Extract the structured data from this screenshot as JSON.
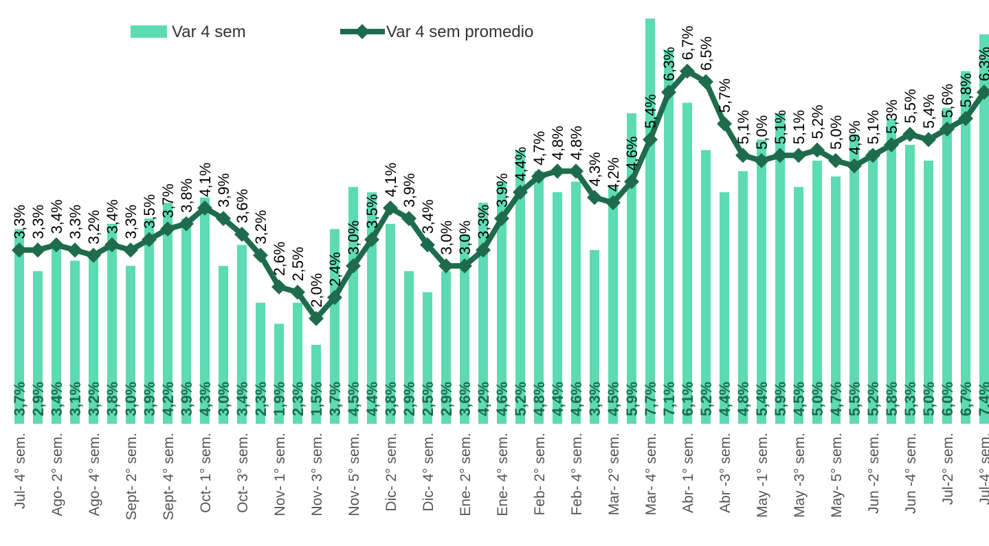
{
  "chart_data": {
    "type": "bar-line",
    "categories": [
      "Jul- 4° sem.",
      null,
      "Ago- 2° sem.",
      null,
      "Ago- 4° sem.",
      null,
      "Sept- 2° sem.",
      null,
      "Sept- 4° sem.",
      null,
      "Oct- 1° sem.",
      null,
      "Oct- 3° sem.",
      null,
      "Nov- 1° sem.",
      null,
      "Nov- 3° sem.",
      null,
      "Nov- 5° sem.",
      null,
      "Dic- 2° sem.",
      null,
      "Dic- 4° sem.",
      null,
      "Ene- 2° sem.",
      null,
      "Ene- 4° sem.",
      null,
      "Feb- 2° sem.",
      null,
      "Feb- 4° sem.",
      null,
      "Mar- 2° sem.",
      null,
      "Mar- 4° sem.",
      null,
      "Abr- 1° sem.",
      null,
      "Abr -3° sem.",
      null,
      "May -1° sem.",
      null,
      "May -3° sem.",
      null,
      "May- 5° sem.",
      null,
      "Jun -2° sem.",
      null,
      "Jun -4° sem.",
      null,
      "Jul-2° sem.",
      null,
      "Jul-4° sem."
    ],
    "series": [
      {
        "name": "Var 4 sem",
        "type": "bar",
        "color": "#5ddbb3",
        "values": [
          3.7,
          2.9,
          3.4,
          3.1,
          3.2,
          3.8,
          3.0,
          3.9,
          4.2,
          3.9,
          4.3,
          3.0,
          3.4,
          2.3,
          1.9,
          2.3,
          1.5,
          3.7,
          4.5,
          4.4,
          3.8,
          2.9,
          2.5,
          2.9,
          3.6,
          4.2,
          4.6,
          5.2,
          4.8,
          4.4,
          4.6,
          3.3,
          4.5,
          5.9,
          7.7,
          7.1,
          6.1,
          5.2,
          4.4,
          4.8,
          5.4,
          5.9,
          4.5,
          5.0,
          4.7,
          5.5,
          5.2,
          5.8,
          5.3,
          5.0,
          6.0,
          6.7,
          7.4
        ],
        "value_labels": [
          "3,7%",
          "2,9%",
          "3,4%",
          "3,1%",
          "3,2%",
          "3,8%",
          "3,0%",
          "3,9%",
          "4,2%",
          "3,9%",
          "4,3%",
          "3,0%",
          "3,4%",
          "2,3%",
          "1,9%",
          "2,3%",
          "1,5%",
          "3,7%",
          "4,5%",
          "4,4%",
          "3,8%",
          "2,9%",
          "2,5%",
          "2,9%",
          "3,6%",
          "4,2%",
          "4,6%",
          "5,2%",
          "4,8%",
          "4,4%",
          "4,6%",
          "3,3%",
          "4,5%",
          "5,9%",
          "7,7%",
          "7,1%",
          "6,1%",
          "5,2%",
          "4,4%",
          "4,8%",
          "5,4%",
          "5,9%",
          "4,5%",
          "5,0%",
          "4,7%",
          "5,5%",
          "5,2%",
          "5,8%",
          "5,3%",
          "5,0%",
          "6,0%",
          "6,7%",
          "7,4%"
        ]
      },
      {
        "name": "Var 4 sem promedio",
        "type": "line",
        "color": "#1e6b4e",
        "values": [
          3.3,
          3.3,
          3.4,
          3.3,
          3.2,
          3.4,
          3.3,
          3.5,
          3.7,
          3.8,
          4.1,
          3.9,
          3.6,
          3.2,
          2.6,
          2.5,
          2.0,
          2.4,
          3.0,
          3.5,
          4.1,
          3.9,
          3.4,
          3.0,
          3.0,
          3.3,
          3.9,
          4.4,
          4.7,
          4.8,
          4.8,
          4.3,
          4.2,
          4.6,
          5.4,
          6.3,
          6.7,
          6.5,
          5.7,
          5.1,
          5.0,
          5.1,
          5.1,
          5.2,
          5.0,
          4.9,
          5.1,
          5.3,
          5.5,
          5.4,
          5.6,
          5.8,
          6.3
        ],
        "value_labels": [
          "3,3%",
          "3,3%",
          "3,4%",
          "3,3%",
          "3,2%",
          "3,4%",
          "3,3%",
          "3,5%",
          "3,7%",
          "3,8%",
          "4,1%",
          "3,9%",
          "3,6%",
          "3,2%",
          "2,6%",
          "2,5%",
          "2,0%",
          "2,4%",
          "3,0%",
          "3,5%",
          "4,1%",
          "3,9%",
          "3,4%",
          "3,0%",
          "3,0%",
          "3,3%",
          "3,9%",
          "4,4%",
          "4,7%",
          "4,8%",
          "4,8%",
          "4,3%",
          "4,2%",
          "4,6%",
          "5,4%",
          "6,3%",
          "6,7%",
          "6,5%",
          "5,7%",
          "5,1%",
          "5,0%",
          "5,1%",
          "5,1%",
          "5,2%",
          "5,0%",
          "4,9%",
          "5,1%",
          "5,3%",
          "5,5%",
          "5,4%",
          "5,6%",
          "5,8%",
          "6,3%"
        ]
      }
    ],
    "ylim": [
      0,
      7.7
    ],
    "legend": "top"
  }
}
